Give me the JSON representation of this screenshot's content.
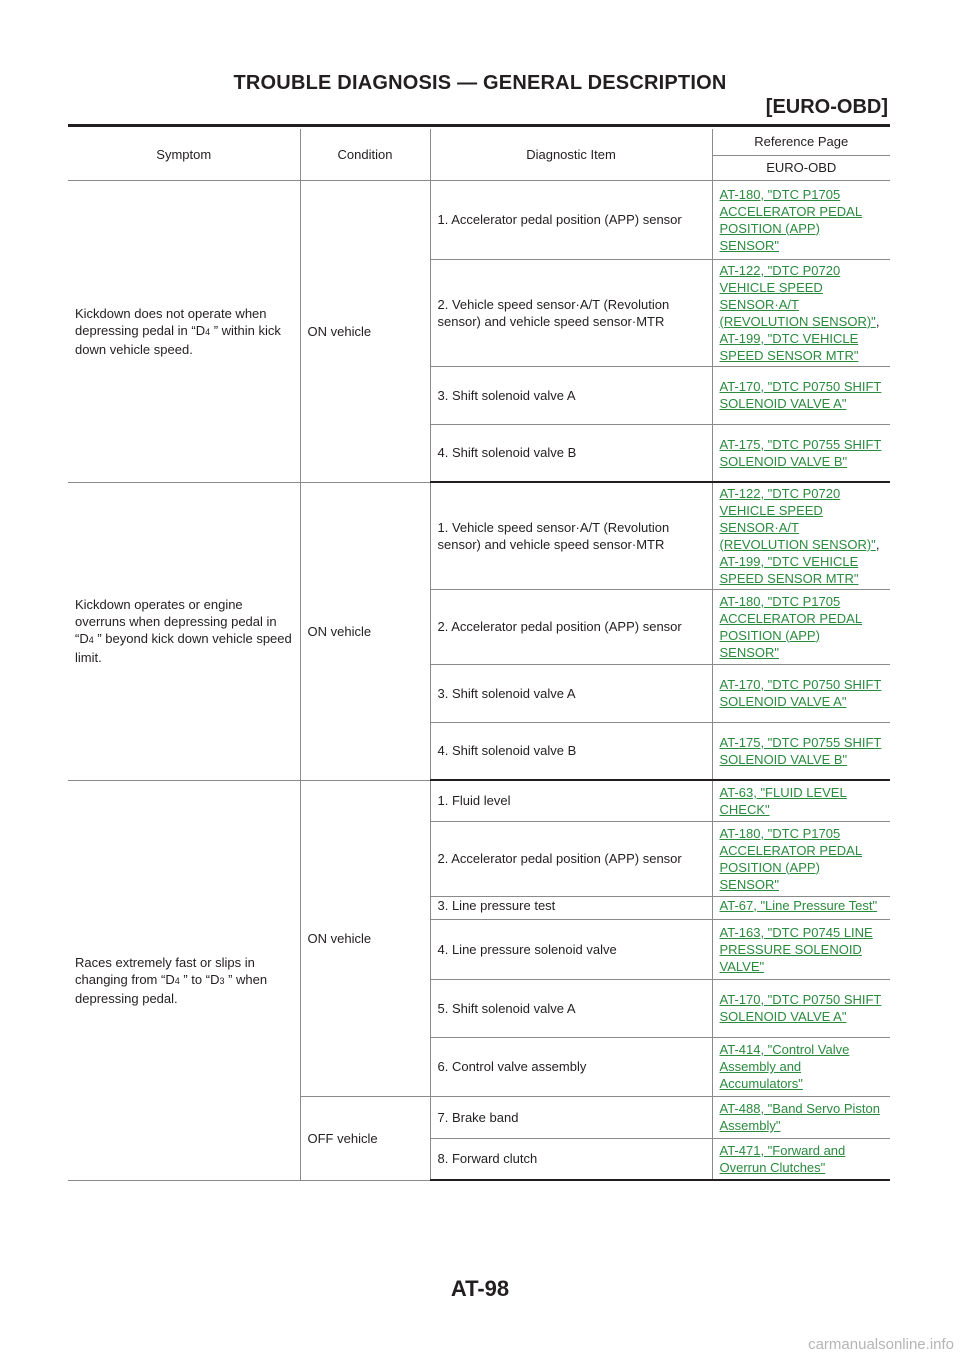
{
  "header": {
    "title": "TROUBLE DIAGNOSIS — GENERAL DESCRIPTION",
    "subtitle": "[EURO-OBD]"
  },
  "table": {
    "columns": {
      "symptom": "Symptom",
      "condition": "Condition",
      "diagnostic_item": "Diagnostic Item",
      "reference_page": "Reference Page",
      "euro_obd": "EURO-OBD"
    },
    "groups": [
      {
        "symptom_pre": "Kickdown does not operate when depressing pedal in “D",
        "symptom_sub": "4",
        "symptom_post": " ” within kick down vehicle speed.",
        "condition": "ON vehicle",
        "items": [
          {
            "item": "1. Accelerator pedal position (APP) sensor",
            "refs": [
              "AT-180, \"DTC P1705 ACCELERATOR PEDAL POSITION (APP) SENSOR\""
            ]
          },
          {
            "item": "2. Vehicle speed sensor·A/T (Revolution sensor) and vehicle speed sensor·MTR",
            "refs": [
              "AT-122, \"DTC P0720 VEHICLE SPEED SENSOR·A/T (REVOLUTION SENSOR)\"",
              "AT-199, \"DTC VEHICLE SPEED SENSOR MTR\""
            ]
          },
          {
            "item": "3. Shift solenoid valve A",
            "refs": [
              "AT-170, \"DTC P0750 SHIFT SOLENOID VALVE A\""
            ]
          },
          {
            "item": "4. Shift solenoid valve B",
            "refs": [
              "AT-175, \"DTC P0755 SHIFT SOLENOID VALVE B\""
            ]
          }
        ]
      },
      {
        "symptom_pre": "Kickdown operates or engine overruns when depressing pedal in “D",
        "symptom_sub": "4",
        "symptom_post": " ” beyond kick down vehicle speed limit.",
        "condition": "ON vehicle",
        "items": [
          {
            "item": "1. Vehicle speed sensor·A/T (Revolution sensor) and vehicle speed sensor·MTR",
            "refs": [
              "AT-122, \"DTC P0720 VEHICLE SPEED SENSOR·A/T (REVOLUTION SENSOR)\"",
              "AT-199, \"DTC VEHICLE SPEED SENSOR MTR\""
            ]
          },
          {
            "item": "2. Accelerator pedal position (APP) sensor",
            "refs": [
              "AT-180, \"DTC P1705 ACCELERATOR PEDAL POSITION (APP) SENSOR\""
            ]
          },
          {
            "item": "3. Shift solenoid valve A",
            "refs": [
              "AT-170, \"DTC P0750 SHIFT SOLENOID VALVE A\""
            ]
          },
          {
            "item": "4. Shift solenoid valve B",
            "refs": [
              "AT-175, \"DTC P0755 SHIFT SOLENOID VALVE B\""
            ]
          }
        ]
      },
      {
        "symptom_pre": "Races extremely fast or slips in changing from “D",
        "symptom_sub": "4",
        "symptom_mid": " ” to “D",
        "symptom_sub2": "3",
        "symptom_post": " ” when depressing pedal.",
        "subgroups": [
          {
            "condition": "ON vehicle",
            "items": [
              {
                "item": "1. Fluid level",
                "refs": [
                  "AT-63, \"FLUID LEVEL CHECK\""
                ]
              },
              {
                "item": "2. Accelerator pedal position (APP) sensor",
                "refs": [
                  "AT-180, \"DTC P1705 ACCELERATOR PEDAL POSITION (APP) SENSOR\""
                ]
              },
              {
                "item": "3. Line pressure test",
                "refs": [
                  "AT-67, \"Line Pressure Test\""
                ]
              },
              {
                "item": "4. Line pressure solenoid valve",
                "refs": [
                  "AT-163, \"DTC P0745 LINE PRESSURE SOLENOID VALVE\""
                ]
              },
              {
                "item": "5. Shift solenoid valve A",
                "refs": [
                  "AT-170, \"DTC P0750 SHIFT SOLENOID VALVE A\""
                ]
              },
              {
                "item": "6. Control valve assembly",
                "refs": [
                  "AT-414, \"Control Valve Assembly and Accumulators\""
                ]
              }
            ]
          },
          {
            "condition": "OFF vehicle",
            "items": [
              {
                "item": "7. Brake band",
                "refs": [
                  "AT-488, \"Band Servo Piston Assembly\""
                ]
              },
              {
                "item": "8. Forward clutch",
                "refs": [
                  "AT-471, \"Forward and Overrun Clutches\""
                ]
              }
            ]
          }
        ]
      }
    ]
  },
  "footer": {
    "page_number": "AT-98",
    "watermark": "carmanualsonline.info"
  }
}
